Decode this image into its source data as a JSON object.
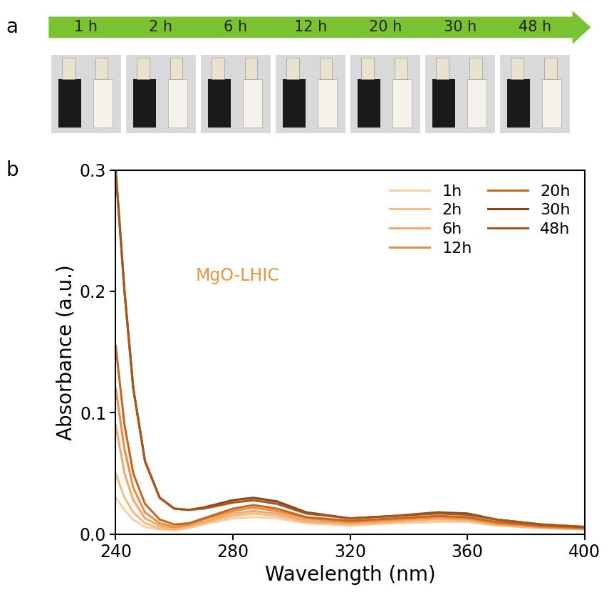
{
  "panel_labels": [
    "a",
    "b"
  ],
  "timeline": {
    "labels": [
      "1 h",
      "2 h",
      "6 h",
      "12 h",
      "20 h",
      "30 h",
      "48 h"
    ]
  },
  "chart_data": {
    "type": "line",
    "annotation": "MgO-LHIC",
    "x_label": "Wavelength (nm)",
    "y_label": "Absorbance (a.u.)",
    "x": [
      240,
      243,
      246,
      250,
      255,
      260,
      265,
      270,
      280,
      287,
      295,
      305,
      320,
      335,
      350,
      360,
      370,
      385,
      400
    ],
    "xlim": [
      240,
      400
    ],
    "xticks": [
      240,
      280,
      320,
      360,
      400
    ],
    "ylim": [
      0.0,
      0.3
    ],
    "yticks": [
      0.0,
      0.1,
      0.2,
      0.3
    ],
    "legend": "upper right",
    "series": [
      {
        "name": "1h",
        "color": "#f8cfa6",
        "values": [
          0.03,
          0.02,
          0.012,
          0.006,
          0.004,
          0.003,
          0.005,
          0.008,
          0.013,
          0.014,
          0.013,
          0.009,
          0.007,
          0.009,
          0.01,
          0.01,
          0.007,
          0.005,
          0.004
        ]
      },
      {
        "name": "2h",
        "color": "#f5bb86",
        "values": [
          0.05,
          0.03,
          0.018,
          0.009,
          0.005,
          0.004,
          0.006,
          0.009,
          0.015,
          0.017,
          0.015,
          0.01,
          0.008,
          0.01,
          0.012,
          0.011,
          0.008,
          0.005,
          0.004
        ]
      },
      {
        "name": "6h",
        "color": "#f0a86b",
        "values": [
          0.09,
          0.05,
          0.028,
          0.013,
          0.007,
          0.005,
          0.007,
          0.01,
          0.017,
          0.019,
          0.017,
          0.011,
          0.009,
          0.011,
          0.013,
          0.012,
          0.008,
          0.006,
          0.004
        ]
      },
      {
        "name": "12h",
        "color": "#e98e45",
        "values": [
          0.12,
          0.07,
          0.038,
          0.018,
          0.009,
          0.006,
          0.008,
          0.012,
          0.019,
          0.022,
          0.019,
          0.013,
          0.01,
          0.012,
          0.014,
          0.013,
          0.009,
          0.006,
          0.005
        ]
      },
      {
        "name": "20h",
        "color": "#c8661f",
        "values": [
          0.155,
          0.09,
          0.05,
          0.025,
          0.012,
          0.008,
          0.009,
          0.013,
          0.021,
          0.024,
          0.021,
          0.014,
          0.011,
          0.013,
          0.015,
          0.014,
          0.01,
          0.007,
          0.005
        ]
      },
      {
        "name": "30h",
        "color": "#8a4512",
        "values": [
          0.3,
          0.2,
          0.12,
          0.06,
          0.03,
          0.021,
          0.02,
          0.022,
          0.028,
          0.03,
          0.027,
          0.018,
          0.013,
          0.015,
          0.018,
          0.017,
          0.012,
          0.008,
          0.006
        ]
      },
      {
        "name": "48h",
        "color": "#a8571c",
        "values": [
          0.3,
          0.2,
          0.12,
          0.06,
          0.03,
          0.021,
          0.02,
          0.021,
          0.026,
          0.028,
          0.025,
          0.017,
          0.013,
          0.015,
          0.017,
          0.016,
          0.012,
          0.008,
          0.006
        ]
      }
    ]
  }
}
